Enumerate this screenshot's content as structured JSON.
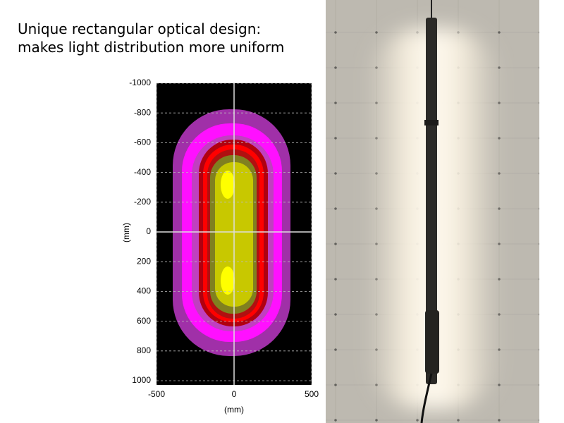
{
  "chart_data": {
    "type": "contour",
    "title": [
      "Unique rectangular optical design:",
      "makes light distribution more uniform"
    ],
    "title_color": "#1a9e4a",
    "x_label": "(mm)",
    "y_label": "(mm)",
    "xlim": [
      -500,
      500
    ],
    "xticks": [
      -500,
      0,
      500
    ],
    "ylim": [
      -1000,
      1000
    ],
    "yticks": [
      -1000,
      -800,
      -600,
      -400,
      -200,
      0,
      200,
      400,
      600,
      800,
      1000
    ],
    "y_inverted": true,
    "grid": true
  }
}
